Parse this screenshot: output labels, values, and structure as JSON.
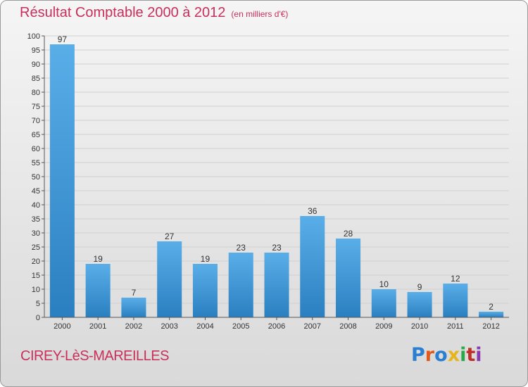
{
  "header": {
    "title": "Résultat Comptable 2000 à 2012",
    "unit": "(en milliers d'€)"
  },
  "footer": {
    "commune": "CIREY-LèS-MAREILLES",
    "brand": "Proxiti",
    "brand_colors": [
      "#2a7fd0",
      "#e05a1c",
      "#2a7fd0",
      "#e8b41c",
      "#2aa84a",
      "#c0302a",
      "#8a3ab0"
    ]
  },
  "colors": {
    "bar_top": "#5aaee8",
    "bar_bottom": "#2a7fc0",
    "title": "#c8305a",
    "axis": "#555555",
    "grid": "#d0d0d0"
  },
  "chart_data": {
    "type": "bar",
    "categories": [
      "2000",
      "2001",
      "2002",
      "2003",
      "2004",
      "2005",
      "2006",
      "2007",
      "2008",
      "2009",
      "2010",
      "2011",
      "2012"
    ],
    "values": [
      97,
      19,
      7,
      27,
      19,
      23,
      23,
      36,
      28,
      10,
      9,
      12,
      2
    ],
    "ylim": [
      0,
      100
    ],
    "ytick_step": 5,
    "grid": true,
    "data_labels": true
  }
}
